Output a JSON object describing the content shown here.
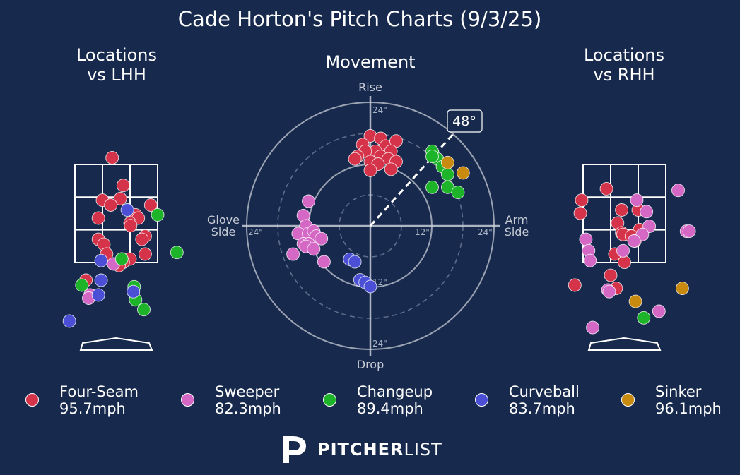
{
  "title": "Cade Horton's Pitch Charts (9/3/25)",
  "panels": {
    "lhh_title_line1": "Locations",
    "lhh_title_line2": "vs LHH",
    "movement_title": "Movement",
    "rhh_title_line1": "Locations",
    "rhh_title_line2": "vs RHH"
  },
  "movement_axes": {
    "top": "Rise",
    "bottom": "Drop",
    "left_line1": "Glove",
    "left_line2": "Side",
    "right_line1": "Arm",
    "right_line2": "Side",
    "ring_12": "12\"",
    "ring_24": "24\"",
    "arm_angle_label": "48°"
  },
  "colors": {
    "background": "#172a4d",
    "Four-Seam": "#d5334a",
    "Sweeper": "#d468c4",
    "Changeup": "#1db42a",
    "Curveball": "#4a4fd6",
    "Sinker": "#c98a10"
  },
  "legend": [
    {
      "name": "Four-Seam",
      "speed": "95.7mph",
      "color": "#d5334a"
    },
    {
      "name": "Sweeper",
      "speed": "82.3mph",
      "color": "#d468c4"
    },
    {
      "name": "Changeup",
      "speed": "89.4mph",
      "color": "#1db42a"
    },
    {
      "name": "Curveball",
      "speed": "83.7mph",
      "color": "#4a4fd6"
    },
    {
      "name": "Sinker",
      "speed": "96.1mph",
      "color": "#c98a10"
    }
  ],
  "brand": {
    "bold": "PITCHER",
    "light": "LIST",
    "logo": "pitcherlist-p-logo"
  },
  "chart_data": [
    {
      "type": "scatter",
      "title": "Locations vs LHH",
      "xlim": [
        -2.2,
        2.2
      ],
      "ylim": [
        -0.3,
        5.2
      ],
      "series": [
        {
          "name": "Four-Seam",
          "points": [
            [
              -0.15,
              4.7
            ],
            [
              0.25,
              3.85
            ],
            [
              -0.5,
              3.4
            ],
            [
              0.15,
              3.45
            ],
            [
              -0.2,
              3.25
            ],
            [
              1.25,
              3.25
            ],
            [
              0.7,
              2.95
            ],
            [
              0.8,
              2.85
            ],
            [
              -0.65,
              2.85
            ],
            [
              0.5,
              2.7
            ],
            [
              0.52,
              2.62
            ],
            [
              1.05,
              2.3
            ],
            [
              0.93,
              2.2
            ],
            [
              -0.65,
              2.2
            ],
            [
              -0.45,
              2.05
            ],
            [
              -0.35,
              1.75
            ],
            [
              0.5,
              1.6
            ],
            [
              0.25,
              1.5
            ],
            [
              0.1,
              1.4
            ],
            [
              1.05,
              1.75
            ],
            [
              -1.1,
              0.95
            ]
          ]
        },
        {
          "name": "Sweeper",
          "points": [
            [
              -0.1,
              1.45
            ],
            [
              -0.95,
              0.5
            ],
            [
              -1.0,
              0.4
            ]
          ]
        },
        {
          "name": "Changeup",
          "points": [
            [
              1.5,
              2.95
            ],
            [
              2.2,
              1.8
            ],
            [
              0.2,
              1.6
            ],
            [
              -1.25,
              0.8
            ],
            [
              0.65,
              0.75
            ],
            [
              0.7,
              0.35
            ],
            [
              1.0,
              0.05
            ]
          ]
        },
        {
          "name": "Curveball",
          "points": [
            [
              0.4,
              3.1
            ],
            [
              -0.55,
              1.55
            ],
            [
              -0.55,
              0.95
            ],
            [
              0.62,
              0.6
            ],
            [
              -0.65,
              0.5
            ],
            [
              -1.7,
              -0.3
            ]
          ]
        }
      ]
    },
    {
      "type": "scatter",
      "title": "Movement",
      "xlabel": "Arm Side",
      "ylabel": "Rise",
      "xlim": [
        -24,
        24
      ],
      "ylim": [
        -24,
        24
      ],
      "arm_angle_deg": 48,
      "series": [
        {
          "name": "Four-Seam",
          "points": [
            [
              0,
              17.5
            ],
            [
              2,
              17
            ],
            [
              -1.5,
              15.8
            ],
            [
              3,
              15.5
            ],
            [
              5,
              16.5
            ],
            [
              4,
              14.5
            ],
            [
              1,
              14.5
            ],
            [
              -1,
              14.5
            ],
            [
              2,
              13.5
            ],
            [
              -2.5,
              13.5
            ],
            [
              3.5,
              13
            ],
            [
              5,
              12.5
            ],
            [
              -3,
              13
            ],
            [
              0,
              12.5
            ],
            [
              1.5,
              12
            ],
            [
              0,
              10.8
            ],
            [
              4,
              11
            ]
          ]
        },
        {
          "name": "Sweeper",
          "points": [
            [
              -12,
              4.8
            ],
            [
              -13,
              2
            ],
            [
              -12.5,
              0
            ],
            [
              -14,
              -1.5
            ],
            [
              -12,
              -1.5
            ],
            [
              -11,
              -1
            ],
            [
              -10.5,
              -2
            ],
            [
              -9.5,
              -2.5
            ],
            [
              -13,
              -3.5
            ],
            [
              -12,
              -3.5
            ],
            [
              -12.5,
              -4
            ],
            [
              -11,
              -4.5
            ],
            [
              -15,
              -5.5
            ],
            [
              -9,
              -7
            ]
          ]
        },
        {
          "name": "Changeup",
          "points": [
            [
              12,
              14.5
            ],
            [
              13,
              13
            ],
            [
              14,
              11.5
            ],
            [
              12,
              13.5
            ],
            [
              15,
              10
            ],
            [
              15,
              7.5
            ],
            [
              12,
              7.5
            ],
            [
              17,
              6.5
            ]
          ]
        },
        {
          "name": "Curveball",
          "points": [
            [
              -4,
              -6.5
            ],
            [
              -3,
              -7
            ],
            [
              -2,
              -10.5
            ],
            [
              -1,
              -11
            ],
            [
              0,
              -11.8
            ]
          ]
        },
        {
          "name": "Sinker",
          "points": [
            [
              15,
              12.3
            ],
            [
              18,
              10.3
            ]
          ]
        }
      ]
    },
    {
      "type": "scatter",
      "title": "Locations vs RHH",
      "xlim": [
        -2.2,
        2.2
      ],
      "ylim": [
        -0.3,
        5.2
      ],
      "series": [
        {
          "name": "Four-Seam",
          "points": [
            [
              -0.65,
              3.75
            ],
            [
              -1.55,
              3.4
            ],
            [
              -0.1,
              3.1
            ],
            [
              0.5,
              3.1
            ],
            [
              -1.6,
              3.0
            ],
            [
              -0.25,
              2.7
            ],
            [
              0.55,
              2.5
            ],
            [
              -0.1,
              2.4
            ],
            [
              -0.05,
              2.35
            ],
            [
              0.25,
              2.3
            ],
            [
              0.38,
              2.15
            ],
            [
              -0.35,
              1.75
            ],
            [
              0,
              1.5
            ],
            [
              -0.5,
              1.1
            ],
            [
              -1.8,
              0.8
            ],
            [
              -0.3,
              0.7
            ]
          ]
        },
        {
          "name": "Sweeper",
          "points": [
            [
              1.95,
              3.7
            ],
            [
              0.45,
              3.4
            ],
            [
              0.8,
              3.05
            ],
            [
              0.9,
              2.6
            ],
            [
              2.25,
              2.45
            ],
            [
              2.35,
              2.45
            ],
            [
              0.65,
              2.35
            ],
            [
              0.35,
              2.15
            ],
            [
              -1.4,
              2.2
            ],
            [
              -1.3,
              1.85
            ],
            [
              -0.05,
              1.85
            ],
            [
              -1.25,
              1.55
            ],
            [
              -0.6,
              0.65
            ],
            [
              -0.55,
              0.6
            ],
            [
              1.25,
              0.0
            ],
            [
              -1.15,
              -0.5
            ]
          ]
        },
        {
          "name": "Changeup",
          "points": [
            [
              0.7,
              -0.2
            ]
          ]
        },
        {
          "name": "Sinker",
          "points": [
            [
              0.4,
              0.3
            ],
            [
              2.1,
              0.7
            ]
          ]
        }
      ]
    }
  ]
}
